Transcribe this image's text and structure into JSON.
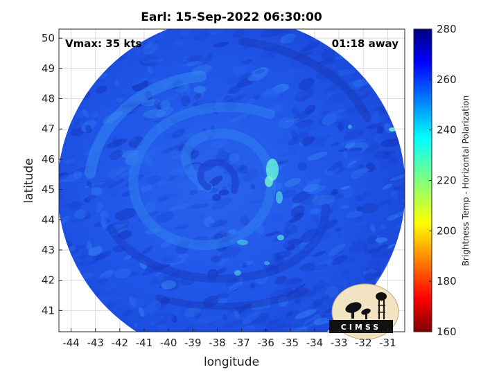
{
  "title": "Earl: 15-Sep-2022 06:30:00",
  "vmax_label": "Vmax: 35 kts",
  "time_label": "01:18 away",
  "xlabel": "longitude",
  "ylabel": "latitude",
  "colorbar": {
    "label": "Brightness Temp - Horizontal Polarization",
    "min": 160,
    "max": 280,
    "ticks": [
      "160",
      "180",
      "200",
      "220",
      "240",
      "260",
      "280"
    ],
    "colormap": "jet"
  },
  "logo": {
    "text": "CIMSS"
  },
  "chart_data": {
    "type": "heatmap",
    "title": "Earl: 15-Sep-2022 06:30:00",
    "xlabel": "longitude",
    "ylabel": "latitude",
    "xlim": [
      -44.5,
      -30.3
    ],
    "ylim": [
      40.3,
      50.3
    ],
    "x_ticks": [
      "-44",
      "-43",
      "-42",
      "-41",
      "-40",
      "-39",
      "-38",
      "-37",
      "-36",
      "-35",
      "-34",
      "-33",
      "-32",
      "-31"
    ],
    "y_ticks": [
      "41",
      "42",
      "43",
      "44",
      "45",
      "46",
      "47",
      "48",
      "49",
      "50"
    ],
    "grid": true,
    "value_range": [
      160,
      280
    ],
    "typical_value": 255,
    "storm_center": {
      "lon": -37.5,
      "lat": 45.3
    },
    "colors": {
      "background_field": "#1f52e6",
      "warm_band": "#2f8cf0",
      "cold_spots": "#5fe8d8"
    }
  }
}
